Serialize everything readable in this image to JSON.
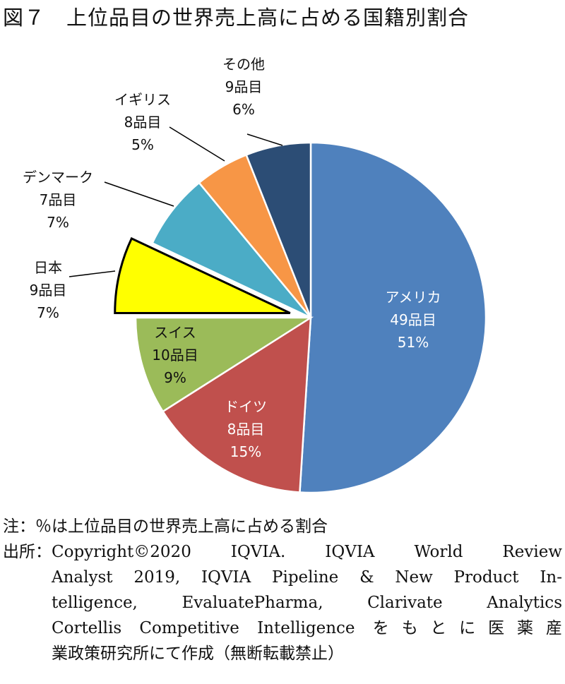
{
  "chart_data": {
    "type": "pie",
    "title": "図７　上位品目の世界売上高に占める国籍別割合",
    "start_angle": "top",
    "direction": "clockwise",
    "slices": [
      {
        "country": "アメリカ",
        "items": "49品目",
        "percent_label": "51%",
        "value": 51,
        "color": "#4F81BD",
        "label_position": "inside",
        "label_color": "#ffffff",
        "exploded": false
      },
      {
        "country": "ドイツ",
        "items": "8品目",
        "percent_label": "15%",
        "value": 15,
        "color": "#C0504D",
        "label_position": "inside",
        "label_color": "#ffffff",
        "exploded": false
      },
      {
        "country": "スイス",
        "items": "10品目",
        "percent_label": "9%",
        "value": 9,
        "color": "#9BBB59",
        "label_position": "inside",
        "label_color": "#111111",
        "exploded": false
      },
      {
        "country": "日本",
        "items": "9品目",
        "percent_label": "7%",
        "value": 7,
        "color": "#FFFF00",
        "label_position": "outside",
        "label_color": "#111111",
        "exploded": true
      },
      {
        "country": "デンマーク",
        "items": "7品目",
        "percent_label": "7%",
        "value": 7,
        "color": "#4BACC6",
        "label_position": "outside",
        "label_color": "#111111",
        "exploded": false
      },
      {
        "country": "イギリス",
        "items": "8品目",
        "percent_label": "5%",
        "value": 5,
        "color": "#F79646",
        "label_position": "outside",
        "label_color": "#111111",
        "exploded": false
      },
      {
        "country": "その他",
        "items": "9品目",
        "percent_label": "6%",
        "value": 6,
        "color": "#2C4D75",
        "label_position": "outside",
        "label_color": "#111111",
        "exploded": false
      }
    ]
  },
  "notes": {
    "note": "注：％は上位品目の世界売上高に占める割合",
    "source_label": "出所：",
    "source_lines": [
      "Copyright©2020 IQVIA. IQVIA World Review",
      "Analyst 2019, IQVIA Pipeline & New Product In-",
      "telligence, EvaluatePharma, Clarivate Analytics",
      "Cortellis Competitive Intelligence をもとに医薬産",
      "業政策研究所にて作成（無断転載禁止）"
    ]
  }
}
